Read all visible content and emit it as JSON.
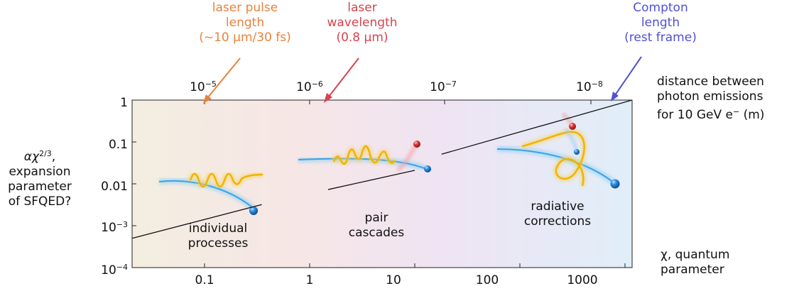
{
  "chart_data": {
    "type": "diagram-plot",
    "x_axis": {
      "label": "χ, quantum parameter",
      "scale": "log",
      "ticks": [
        {
          "value": 0.1,
          "label": "0.1"
        },
        {
          "value": 1,
          "label": "1"
        },
        {
          "value": 10,
          "label": "10"
        },
        {
          "value": 100,
          "label": "100"
        },
        {
          "value": 1000,
          "label": "1000"
        }
      ]
    },
    "y_axis": {
      "label_lines": [
        "αχ",
        "2/3",
        ",",
        "expansion",
        "parameter",
        "of SFQED?"
      ],
      "scale": "log",
      "ticks": [
        {
          "label": "1",
          "exp": ""
        },
        {
          "label": "0.1",
          "exp": ""
        },
        {
          "label": "0.01",
          "exp": ""
        },
        {
          "label": "10",
          "exp": "−3"
        },
        {
          "label": "10",
          "exp": "−4"
        }
      ]
    },
    "top_axis": {
      "label_lines": [
        "distance between",
        "photon emissions",
        "for 10 GeV e",
        "−",
        " (m)"
      ],
      "ticks": [
        {
          "label": "10",
          "exp": "−5"
        },
        {
          "label": "10",
          "exp": "−6"
        },
        {
          "label": "10",
          "exp": "−7"
        },
        {
          "label": "10",
          "exp": "−8"
        }
      ]
    },
    "series": [
      {
        "name": "αχ^(2/3)",
        "x": [
          0.02,
          0.35,
          1.5,
          10,
          18,
          1800
        ],
        "y": [
          0.0005,
          0.0032,
          0.0073,
          0.021,
          0.051,
          1.15
        ]
      }
    ],
    "regions": [
      {
        "lines": [
          "individual",
          "processes"
        ]
      },
      {
        "lines": [
          "pair",
          "cascades"
        ]
      },
      {
        "lines": [
          "radiative",
          "corrections"
        ]
      }
    ],
    "annotations": [
      {
        "color": "#e8823c",
        "lines": [
          "laser pulse",
          "length",
          "(~10 μm/30 fs)"
        ],
        "points_to": "10−5"
      },
      {
        "color": "#d8434d",
        "lines": [
          "laser",
          "wavelength",
          "(0.8 μm)"
        ],
        "points_to": "10−6"
      },
      {
        "color": "#5050d6",
        "lines": [
          "Compton",
          "length",
          "(rest frame)"
        ],
        "points_to": "10−8"
      }
    ]
  }
}
